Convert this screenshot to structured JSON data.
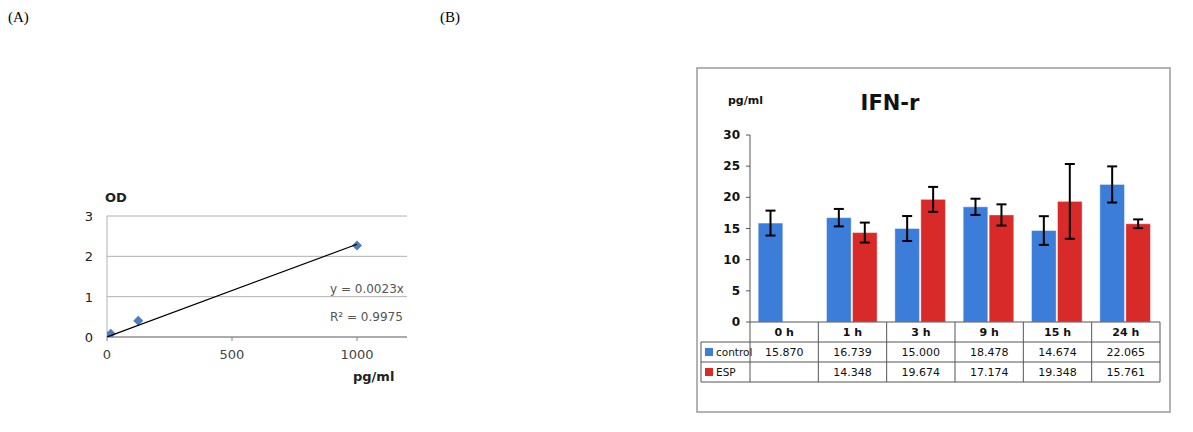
{
  "chart_data": [
    {
      "type": "scatter",
      "panel": "(A)",
      "xlabel": "pg/ml",
      "ylabel": "OD",
      "annotations": [
        "y = 0.0023x",
        "R² = 0.9975"
      ],
      "series": [
        {
          "type": "scatter",
          "marker": "diamond",
          "color": "#4a7ebb",
          "x": [
            0,
            15,
            125,
            1000
          ],
          "values": [
            0.02,
            0.08,
            0.4,
            2.27
          ]
        },
        {
          "type": "line",
          "line_style": "solid",
          "color": "#000000",
          "x": [
            0,
            1000
          ],
          "values": [
            0,
            2.3
          ]
        }
      ],
      "xlim": [
        0,
        1200
      ],
      "xticks": [
        0,
        500,
        1000
      ],
      "ylim": [
        0,
        3
      ],
      "yticks": [
        0,
        1,
        2,
        3
      ],
      "grid": true
    },
    {
      "type": "bar",
      "panel": "(B)",
      "title": "IFN-r",
      "ylabel": "pg/ml",
      "categories": [
        "0 h",
        "1 h",
        "3 h",
        "9 h",
        "15 h",
        "24 h"
      ],
      "series": [
        {
          "name": "control",
          "color": "#3b7dd8",
          "values": [
            15.87,
            16.739,
            15.0,
            18.478,
            14.674,
            22.065
          ],
          "value_labels": [
            "15.870",
            "16.739",
            "15.000",
            "18.478",
            "14.674",
            "22.065"
          ],
          "errors": [
            2.0,
            1.4,
            2.0,
            1.3,
            2.3,
            2.9
          ]
        },
        {
          "name": "ESP",
          "color": "#d92a2a",
          "values": [
            null,
            14.348,
            19.674,
            17.174,
            19.348,
            15.761
          ],
          "value_labels": [
            null,
            "14.348",
            "19.674",
            "17.174",
            "19.348",
            "15.761"
          ],
          "errors": [
            null,
            1.6,
            2.0,
            1.7,
            6.0,
            0.7
          ]
        }
      ],
      "ylim": [
        0,
        30
      ],
      "yticks": [
        0,
        5,
        10,
        15,
        20,
        25,
        30
      ],
      "grid": false
    }
  ]
}
